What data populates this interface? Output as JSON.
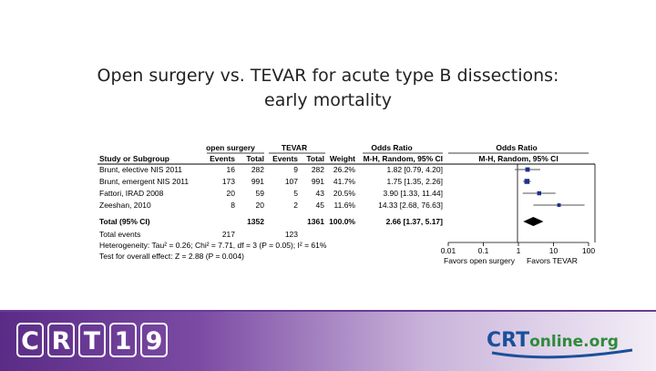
{
  "slide": {
    "title_line1": "Open surgery vs. TEVAR for acute type B dissections:",
    "title_line2": "early mortality"
  },
  "table": {
    "header_group_open": "open surgery",
    "header_group_tevar": "TEVAR",
    "header_or": "Odds Ratio",
    "header_or_plot": "Odds Ratio",
    "col_study": "Study or Subgroup",
    "col_events1": "Events",
    "col_total1": "Total",
    "col_events2": "Events",
    "col_total2": "Total",
    "col_weight": "Weight",
    "col_method": "M-H, Random, 95% CI",
    "col_method_plot": "M-H, Random, 95% CI"
  },
  "chart_data": {
    "type": "forest",
    "x_scale": "log",
    "xlim": [
      0.01,
      100
    ],
    "x_ticks": [
      "0.01",
      "0.1",
      "1",
      "10",
      "100"
    ],
    "x_tick_values": [
      0.01,
      0.1,
      1,
      10,
      100
    ],
    "favors_left": "Favors open surgery",
    "favors_right": "Favors TEVAR",
    "studies": [
      {
        "name": "Brunt, elective NIS 2011",
        "events1": "16",
        "total1": "282",
        "events2": "9",
        "total2": "282",
        "weight": "26.2%",
        "ci_text": "1.82 [0.79, 4.20]",
        "or": 1.82,
        "lo": 0.79,
        "hi": 4.2,
        "w": 26.2
      },
      {
        "name": "Brunt, emergent NIS 2011",
        "events1": "173",
        "total1": "991",
        "events2": "107",
        "total2": "991",
        "weight": "41.7%",
        "ci_text": "1.75 [1.35, 2.26]",
        "or": 1.75,
        "lo": 1.35,
        "hi": 2.26,
        "w": 41.7
      },
      {
        "name": "Fattori, IRAD 2008",
        "events1": "20",
        "total1": "59",
        "events2": "5",
        "total2": "43",
        "weight": "20.5%",
        "ci_text": "3.90 [1.33, 11.44]",
        "or": 3.9,
        "lo": 1.33,
        "hi": 11.44,
        "w": 20.5
      },
      {
        "name": "Zeeshan, 2010",
        "events1": "8",
        "total1": "20",
        "events2": "2",
        "total2": "45",
        "weight": "11.6%",
        "ci_text": "14.33 [2.68, 76.63]",
        "or": 14.33,
        "lo": 2.68,
        "hi": 76.63,
        "w": 11.6
      }
    ],
    "total": {
      "name": "Total (95% CI)",
      "total1": "1352",
      "total2": "1361",
      "weight": "100.0%",
      "ci_text": "2.66 [1.37, 5.17]",
      "or": 2.66,
      "lo": 1.37,
      "hi": 5.17
    },
    "total_events": {
      "label": "Total events",
      "events1": "217",
      "events2": "123"
    },
    "heterogeneity": "Heterogeneity: Tau² = 0.26; Chi² = 7.71, df = 3 (P = 0.05); I² = 61%",
    "overall_effect": "Test for overall effect: Z = 2.88 (P = 0.004)",
    "colors": {
      "study_marker": "#1f2f8f",
      "diamond": "#000000"
    }
  },
  "footer": {
    "crt_letters": [
      "C",
      "R",
      "T",
      "1",
      "9"
    ],
    "online_crt": "CRT",
    "online_rest": "online.org",
    "colors": {
      "crt_blue": "#1b4f9b",
      "online_green": "#2e8b3a"
    }
  }
}
